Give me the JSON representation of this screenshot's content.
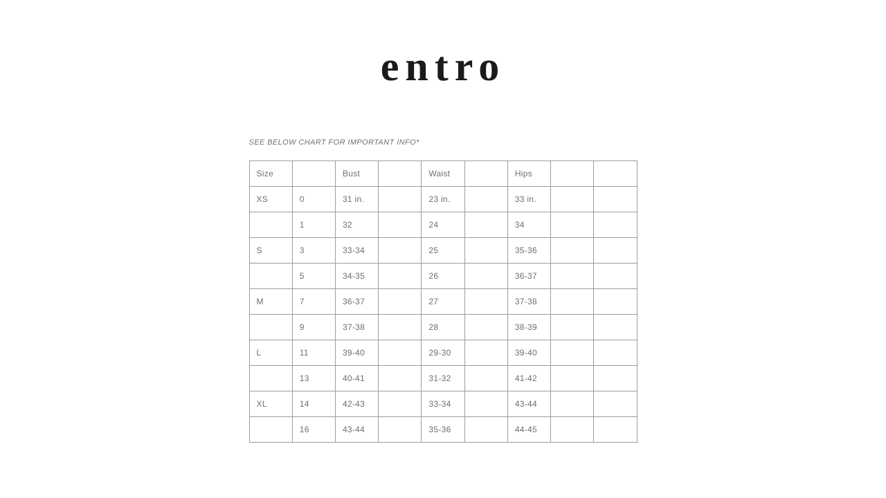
{
  "brand": {
    "logo_text": "entro"
  },
  "note": "SEE BELOW CHART FOR IMPORTANT INFO*",
  "size_chart": {
    "header": [
      "Size",
      "",
      "Bust",
      "",
      "Waist",
      "",
      "Hips",
      "",
      ""
    ],
    "rows": [
      [
        "XS",
        "0",
        "31 in.",
        "",
        "23 in.",
        "",
        "33 in.",
        "",
        ""
      ],
      [
        "",
        "1",
        "32",
        "",
        "24",
        "",
        "34",
        "",
        ""
      ],
      [
        "S",
        "3",
        "33-34",
        "",
        "25",
        "",
        "35-36",
        "",
        ""
      ],
      [
        "",
        "5",
        "34-35",
        "",
        "26",
        "",
        "36-37",
        "",
        ""
      ],
      [
        "M",
        "7",
        "36-37",
        "",
        "27",
        "",
        "37-38",
        "",
        ""
      ],
      [
        "",
        "9",
        "37-38",
        "",
        "28",
        "",
        "38-39",
        "",
        ""
      ],
      [
        "L",
        "11",
        "39-40",
        "",
        "29-30",
        "",
        "39-40",
        "",
        ""
      ],
      [
        "",
        "13",
        "40-41",
        "",
        "31-32",
        "",
        "41-42",
        "",
        ""
      ],
      [
        "XL",
        "14",
        "42-43",
        "",
        "33-34",
        "",
        "43-44",
        "",
        ""
      ],
      [
        "",
        "16",
        "43-44",
        "",
        "35-36",
        "",
        "44-45",
        "",
        ""
      ]
    ]
  },
  "colors": {
    "background": "#ffffff",
    "logo": "#1b1b1b",
    "table_text": "#6e6e6e",
    "table_border": "#9c9c9c",
    "note_text": "#717171"
  }
}
